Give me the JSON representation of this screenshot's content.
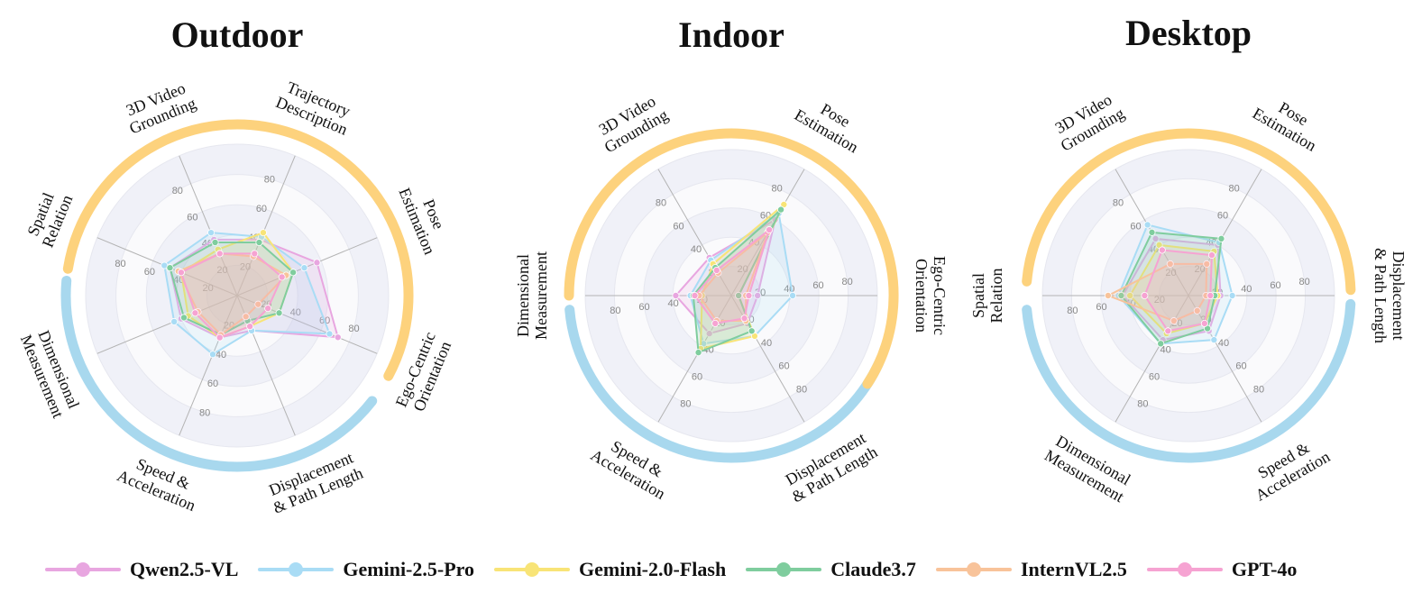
{
  "colors": {
    "Qwen2.5-VL": "#e8a6e0",
    "Gemini-2.5-Pro": "#a9dcf5",
    "Gemini-2.0-Flash": "#f8e477",
    "Claude3.7": "#7fcd9e",
    "InternVL2.5": "#f8c39a",
    "GPT-4o": "#f6a3d2",
    "arc_blue": "#a8d8ee",
    "arc_orange": "#fdd27d"
  },
  "legend": [
    "Qwen2.5-VL",
    "Gemini-2.5-Pro",
    "Gemini-2.0-Flash",
    "Claude3.7",
    "InternVL2.5",
    "GPT-4o"
  ],
  "chart_data": [
    {
      "type": "radar",
      "title": "Outdoor",
      "axes": [
        "Trajectory\nDescription",
        "Pose\nEstimation",
        "Ego-Centric\nOrientation",
        "Displacement\n& Path Length",
        "Speed &\nAcceleration",
        "Dimensional\nMeasurement",
        "Spatial\nRelation",
        "3D Video\nGrounding"
      ],
      "ticks": [
        "20",
        "40",
        "60",
        "80"
      ],
      "rlim": [
        0,
        100
      ],
      "series": [
        {
          "name": "Qwen2.5-VL",
          "values": [
            40,
            57,
            72,
            25,
            30,
            40,
            48,
            40
          ]
        },
        {
          "name": "Gemini-2.5-Pro",
          "values": [
            42,
            48,
            66,
            25,
            42,
            45,
            52,
            45
          ]
        },
        {
          "name": "Gemini-2.0-Flash",
          "values": [
            45,
            40,
            30,
            22,
            30,
            35,
            40,
            33
          ]
        },
        {
          "name": "Claude3.7",
          "values": [
            38,
            40,
            30,
            18,
            28,
            38,
            48,
            38
          ]
        },
        {
          "name": "InternVL2.5",
          "values": [
            28,
            35,
            15,
            15,
            28,
            28,
            42,
            30
          ]
        },
        {
          "name": "GPT-4o",
          "values": [
            30,
            32,
            22,
            22,
            30,
            30,
            40,
            30
          ]
        }
      ]
    },
    {
      "type": "radar",
      "title": "Indoor",
      "axes": [
        "Pose\nEstimation",
        "Ego-Centric\nOrientation",
        "Displacement\n& Path Length",
        "Speed &\nAcceleration",
        "Dimensional\nMeasurement",
        "3D Video\nGrounding"
      ],
      "ticks": [
        "20",
        "40",
        "60",
        "80"
      ],
      "rlim": [
        0,
        100
      ],
      "series": [
        {
          "name": "Qwen2.5-VL",
          "values": [
            60,
            18,
            22,
            30,
            38,
            30
          ]
        },
        {
          "name": "Gemini-2.5-Pro",
          "values": [
            65,
            42,
            32,
            38,
            28,
            28
          ]
        },
        {
          "name": "Gemini-2.0-Flash",
          "values": [
            72,
            5,
            32,
            42,
            20,
            25
          ]
        },
        {
          "name": "Claude3.7",
          "values": [
            68,
            5,
            28,
            45,
            26,
            22
          ]
        },
        {
          "name": "InternVL2.5",
          "values": [
            50,
            10,
            20,
            20,
            22,
            18
          ]
        },
        {
          "name": "GPT-4o",
          "values": [
            52,
            12,
            18,
            22,
            25,
            20
          ]
        }
      ]
    },
    {
      "type": "radar",
      "title": "Desktop",
      "axes": [
        "Pose\nEstimation",
        "Displacement\n& Path Length",
        "Speed &\nAcceleration",
        "Dimensional\nMeasurement",
        "Spatial\nRelation",
        "3D Video\nGrounding"
      ],
      "ticks": [
        "20",
        "40",
        "60",
        "80"
      ],
      "rlim": [
        0,
        100
      ],
      "series": [
        {
          "name": "Qwen2.5-VL",
          "values": [
            40,
            22,
            28,
            35,
            45,
            45
          ]
        },
        {
          "name": "Gemini-2.5-Pro",
          "values": [
            42,
            30,
            35,
            38,
            48,
            56
          ]
        },
        {
          "name": "Gemini-2.0-Flash",
          "values": [
            35,
            20,
            22,
            30,
            40,
            40
          ]
        },
        {
          "name": "Claude3.7",
          "values": [
            45,
            18,
            26,
            38,
            46,
            50
          ]
        },
        {
          "name": "InternVL2.5",
          "values": [
            25,
            12,
            12,
            20,
            55,
            25
          ]
        },
        {
          "name": "GPT-4o",
          "values": [
            32,
            15,
            22,
            28,
            30,
            36
          ]
        }
      ]
    }
  ]
}
